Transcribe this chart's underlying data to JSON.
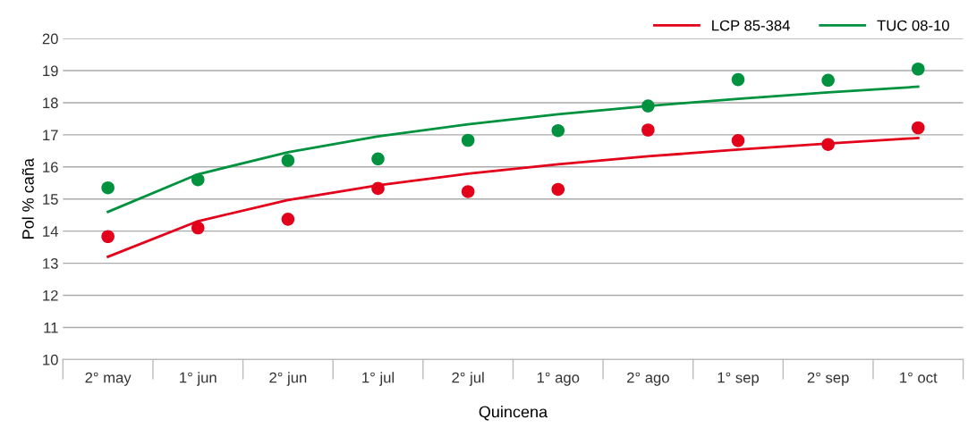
{
  "chart_data": {
    "type": "scatter",
    "xlabel": "Quincena",
    "ylabel": "Pol % caña",
    "categories": [
      "2° may",
      "1° jun",
      "2° jun",
      "1° jul",
      "2° jul",
      "1° ago",
      "2° ago",
      "1° sep",
      "2° sep",
      "1° oct"
    ],
    "series": [
      {
        "color": "#e2001a",
        "values": [
          13.83,
          14.1,
          14.37,
          15.33,
          15.23,
          15.3,
          17.15,
          16.82,
          16.7,
          17.22
        ]
      },
      {
        "color": "#00923f",
        "values": [
          15.35,
          15.6,
          16.2,
          16.25,
          16.83,
          17.13,
          17.9,
          18.72,
          18.7,
          19.05
        ]
      },
      {
        "type": "line",
        "marker": "none",
        "name": "LCP 85-384",
        "color": "#e2001a",
        "x": [
          "2° may",
          "1° jun",
          "2° jun",
          "1° jul",
          "2° jul",
          "1° ago",
          "2° ago",
          "1° sep",
          "2° sep",
          "1° oct"
        ],
        "values": [
          13.2,
          14.31,
          14.97,
          15.43,
          15.79,
          16.08,
          16.33,
          16.54,
          16.73,
          16.9
        ]
      },
      {
        "type": "line",
        "marker": "none",
        "name": "TUC 08-10",
        "color": "#00923f",
        "x": [
          "2° may",
          "1° jun",
          "2° jun",
          "1° jul",
          "2° jul",
          "1° ago",
          "2° ago",
          "1° sep",
          "2° sep",
          "1° oct"
        ],
        "values": [
          14.6,
          15.77,
          16.46,
          16.95,
          17.33,
          17.64,
          17.9,
          18.12,
          18.32,
          18.5
        ]
      }
    ],
    "ylim": [
      10,
      20
    ],
    "yticks": [
      10,
      11,
      12,
      13,
      14,
      15,
      16,
      17,
      18,
      19,
      20
    ],
    "grid": "y",
    "legend": "top right",
    "marker": "circle",
    "line_style": "solid"
  }
}
